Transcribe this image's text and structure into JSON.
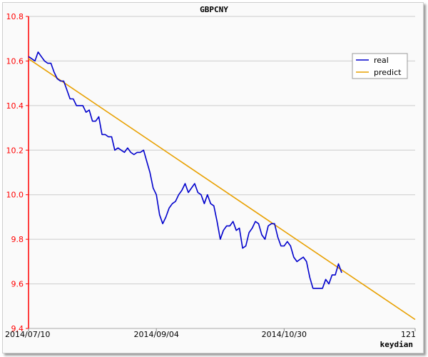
{
  "chart_data": {
    "type": "line",
    "title": "GBPCNY",
    "xlabel": "keydian",
    "ylabel": "",
    "xlim": [
      0,
      121
    ],
    "ylim": [
      9.4,
      10.8
    ],
    "y_ticks": [
      9.4,
      9.6,
      9.8,
      10.0,
      10.2,
      10.4,
      10.6,
      10.8
    ],
    "y_tick_labels": [
      "9.4",
      "9.6",
      "9.8",
      "10.0",
      "10.2",
      "10.4",
      "10.6",
      "10.8"
    ],
    "x_ticks": [
      0,
      40,
      80,
      121
    ],
    "x_tick_labels": [
      "2014/07/10",
      "2014/09/04",
      "2014/10/30",
      "121"
    ],
    "grid": true,
    "legend_position": "top-right",
    "series": [
      {
        "name": "real",
        "color": "#0000cc",
        "points": [
          [
            0,
            10.62
          ],
          [
            1,
            10.61
          ],
          [
            2,
            10.6
          ],
          [
            3,
            10.64
          ],
          [
            4,
            10.62
          ],
          [
            5,
            10.6
          ],
          [
            6,
            10.59
          ],
          [
            7,
            10.59
          ],
          [
            8,
            10.55
          ],
          [
            9,
            10.52
          ],
          [
            10,
            10.51
          ],
          [
            11,
            10.51
          ],
          [
            12,
            10.47
          ],
          [
            13,
            10.43
          ],
          [
            14,
            10.43
          ],
          [
            15,
            10.4
          ],
          [
            16,
            10.4
          ],
          [
            17,
            10.4
          ],
          [
            18,
            10.37
          ],
          [
            19,
            10.38
          ],
          [
            20,
            10.33
          ],
          [
            21,
            10.33
          ],
          [
            22,
            10.35
          ],
          [
            23,
            10.27
          ],
          [
            24,
            10.27
          ],
          [
            25,
            10.26
          ],
          [
            26,
            10.26
          ],
          [
            27,
            10.2
          ],
          [
            28,
            10.21
          ],
          [
            29,
            10.2
          ],
          [
            30,
            10.19
          ],
          [
            31,
            10.21
          ],
          [
            32,
            10.19
          ],
          [
            33,
            10.18
          ],
          [
            34,
            10.19
          ],
          [
            35,
            10.19
          ],
          [
            36,
            10.2
          ],
          [
            37,
            10.15
          ],
          [
            38,
            10.1
          ],
          [
            39,
            10.03
          ],
          [
            40,
            10.0
          ],
          [
            41,
            9.91
          ],
          [
            42,
            9.87
          ],
          [
            43,
            9.9
          ],
          [
            44,
            9.94
          ],
          [
            45,
            9.96
          ],
          [
            46,
            9.97
          ],
          [
            47,
            10.0
          ],
          [
            48,
            10.02
          ],
          [
            49,
            10.05
          ],
          [
            50,
            10.01
          ],
          [
            51,
            10.03
          ],
          [
            52,
            10.05
          ],
          [
            53,
            10.01
          ],
          [
            54,
            10.0
          ],
          [
            55,
            9.96
          ],
          [
            56,
            10.0
          ],
          [
            57,
            9.96
          ],
          [
            58,
            9.95
          ],
          [
            59,
            9.88
          ],
          [
            60,
            9.8
          ],
          [
            61,
            9.84
          ],
          [
            62,
            9.86
          ],
          [
            63,
            9.86
          ],
          [
            64,
            9.88
          ],
          [
            65,
            9.84
          ],
          [
            66,
            9.85
          ],
          [
            67,
            9.76
          ],
          [
            68,
            9.77
          ],
          [
            69,
            9.83
          ],
          [
            70,
            9.85
          ],
          [
            71,
            9.88
          ],
          [
            72,
            9.87
          ],
          [
            73,
            9.82
          ],
          [
            74,
            9.8
          ],
          [
            75,
            9.86
          ],
          [
            76,
            9.87
          ],
          [
            77,
            9.87
          ],
          [
            78,
            9.81
          ],
          [
            79,
            9.77
          ],
          [
            80,
            9.77
          ],
          [
            81,
            9.79
          ],
          [
            82,
            9.77
          ],
          [
            83,
            9.72
          ],
          [
            84,
            9.7
          ],
          [
            85,
            9.71
          ],
          [
            86,
            9.72
          ],
          [
            87,
            9.7
          ],
          [
            88,
            9.63
          ],
          [
            89,
            9.58
          ],
          [
            90,
            9.58
          ],
          [
            91,
            9.58
          ],
          [
            92,
            9.58
          ],
          [
            93,
            9.62
          ],
          [
            94,
            9.6
          ],
          [
            95,
            9.64
          ],
          [
            96,
            9.64
          ],
          [
            97,
            9.69
          ],
          [
            98,
            9.65
          ]
        ]
      },
      {
        "name": "predict",
        "color": "#e8a000",
        "points": [
          [
            0,
            10.61
          ],
          [
            121,
            9.44
          ]
        ]
      }
    ]
  }
}
